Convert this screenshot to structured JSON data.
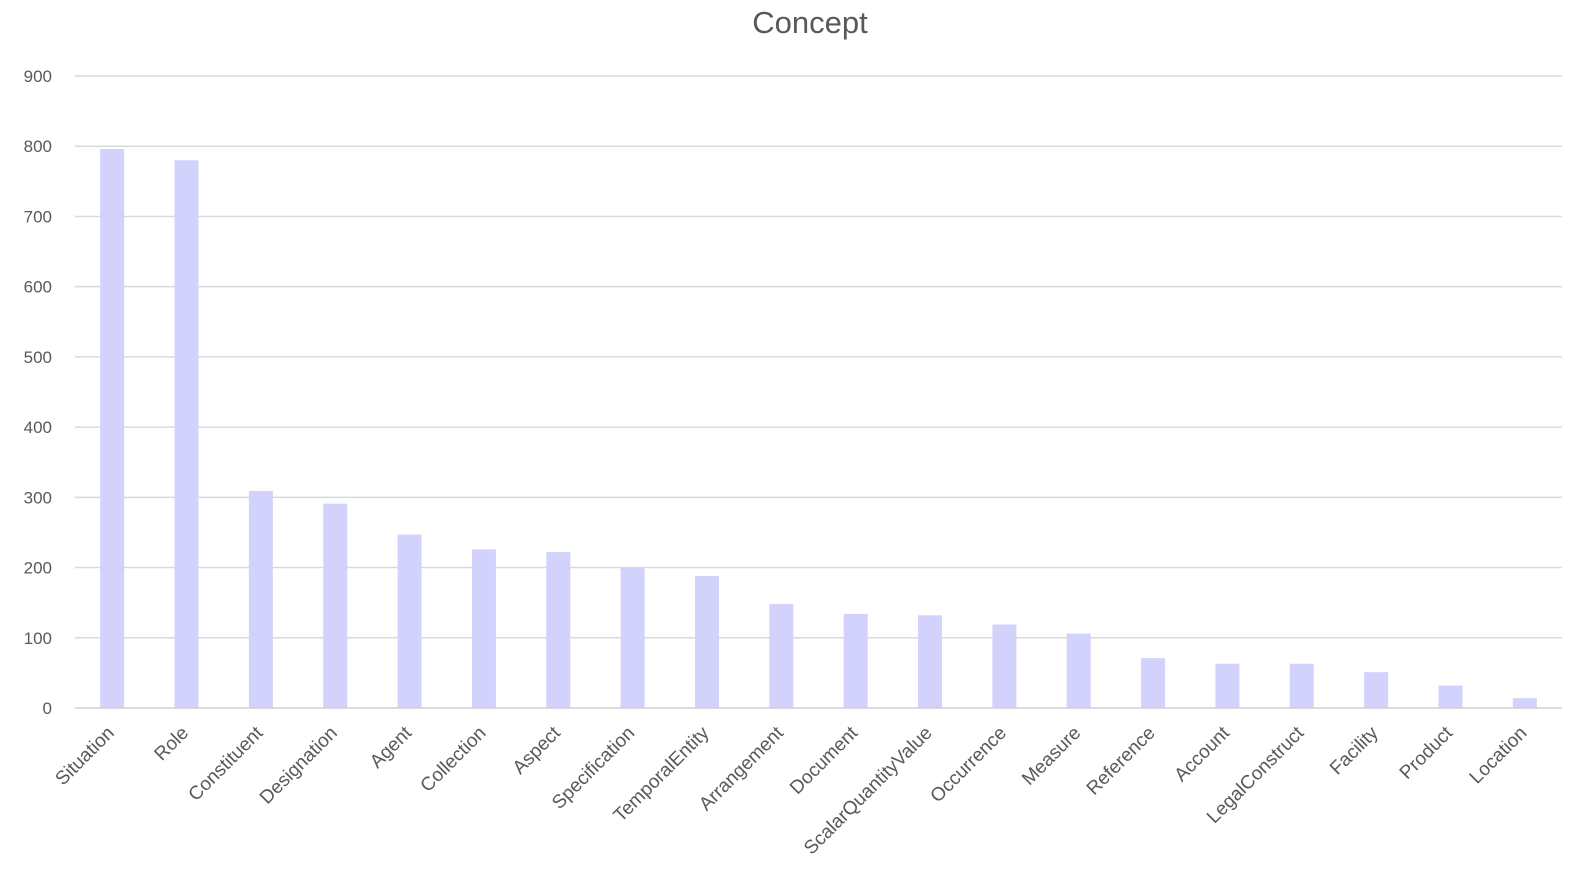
{
  "chart_data": {
    "type": "bar",
    "title": "Concept",
    "xlabel": "",
    "ylabel": "",
    "ylim": [
      0,
      900
    ],
    "yticks": [
      0,
      100,
      200,
      300,
      400,
      500,
      600,
      700,
      800,
      900
    ],
    "grid": true,
    "legend": "none",
    "bar_color": "#d2d2fc",
    "categories": [
      "Situation",
      "Role",
      "Constituent",
      "Designation",
      "Agent",
      "Collection",
      "Aspect",
      "Specification",
      "TemporalEntity",
      "Arrangement",
      "Document",
      "ScalarQuantityValue",
      "Occurrence",
      "Measure",
      "Reference",
      "Account",
      "LegalConstruct",
      "Facility",
      "Product",
      "Location"
    ],
    "values": [
      796,
      780,
      309,
      291,
      247,
      226,
      222,
      200,
      188,
      148,
      134,
      132,
      119,
      106,
      71,
      63,
      63,
      51,
      32,
      14
    ]
  }
}
